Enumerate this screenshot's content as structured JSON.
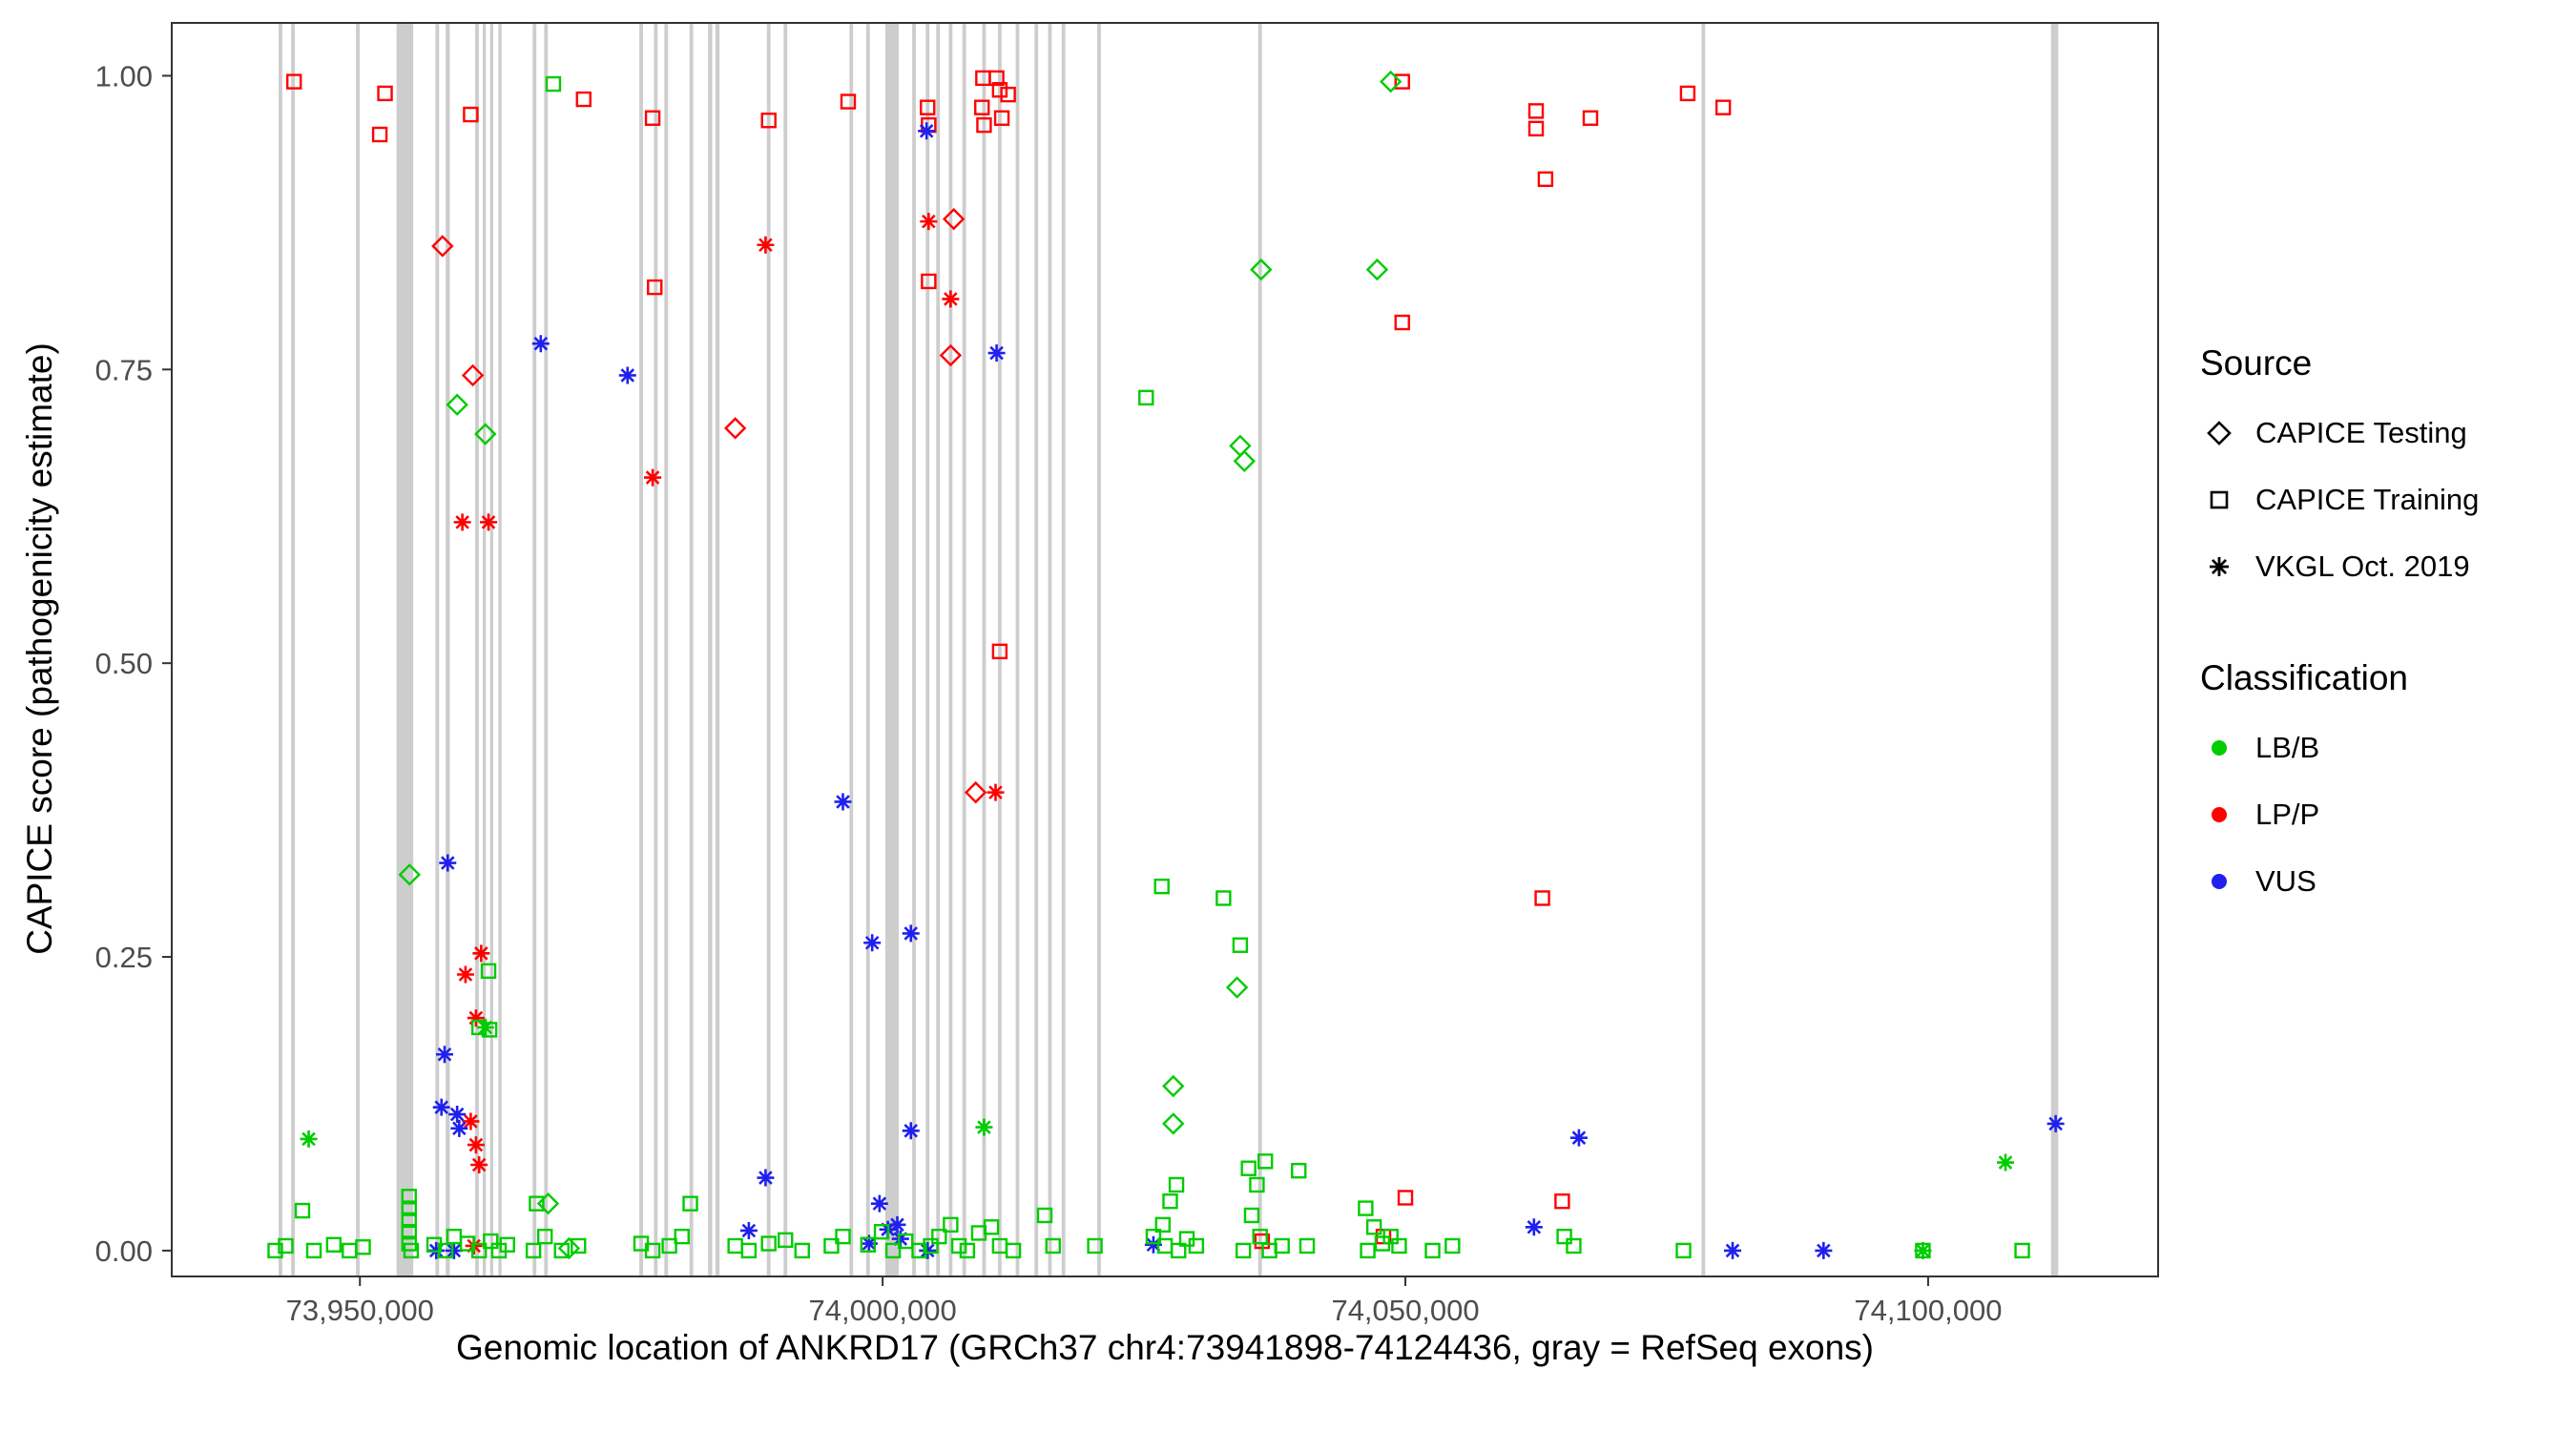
{
  "legend": {
    "source": {
      "title": "Source",
      "items": [
        {
          "label": "CAPICE Testing",
          "shape": "diamond"
        },
        {
          "label": "CAPICE Training",
          "shape": "square"
        },
        {
          "label": "VKGL Oct. 2019",
          "shape": "asterisk"
        }
      ]
    },
    "classification": {
      "title": "Classification",
      "items": [
        {
          "label": "LB/B",
          "color": "#00CC00"
        },
        {
          "label": "LP/P",
          "color": "#FF0000"
        },
        {
          "label": "VUS",
          "color": "#2020EE"
        }
      ]
    }
  },
  "chart_data": {
    "type": "scatter",
    "title": "",
    "xlabel": "Genomic location of ANKRD17 (GRCh37 chr4:73941898-74124436, gray = RefSeq exons)",
    "ylabel": "CAPICE score (pathogenicity estimate)",
    "x_domain": [
      73932000,
      74122000
    ],
    "y_domain": [
      -0.022,
      1.045
    ],
    "x_ticks": [
      {
        "value": 73950000,
        "label": "73,950,000"
      },
      {
        "value": 74000000,
        "label": "74,000,000"
      },
      {
        "value": 74050000,
        "label": "74,050,000"
      },
      {
        "value": 74100000,
        "label": "74,100,000"
      }
    ],
    "y_ticks": [
      {
        "value": 0.0,
        "label": "0.00"
      },
      {
        "value": 0.25,
        "label": "0.25"
      },
      {
        "value": 0.5,
        "label": "0.50"
      },
      {
        "value": 0.75,
        "label": "0.75"
      },
      {
        "value": 1.0,
        "label": "1.00"
      }
    ],
    "grid": false,
    "legend_position": "right",
    "colors": {
      "g": "#00CC00",
      "r": "#FF0000",
      "b": "#2020EE"
    },
    "class_names": {
      "g": "LB/B",
      "r": "LP/P",
      "b": "VUS"
    },
    "source_names": {
      "d": "CAPICE Testing",
      "s": "CAPICE Training",
      "a": "VKGL Oct. 2019"
    },
    "exon_color": "#C8C8C8",
    "exons": [
      [
        73942400,
        350
      ],
      [
        73943600,
        350
      ],
      [
        73949800,
        350
      ],
      [
        73954300,
        1600
      ],
      [
        73957400,
        350
      ],
      [
        73958400,
        400
      ],
      [
        73961200,
        350
      ],
      [
        73961900,
        300
      ],
      [
        73962600,
        300
      ],
      [
        73963400,
        300
      ],
      [
        73966700,
        350
      ],
      [
        73967800,
        350
      ],
      [
        73976900,
        350
      ],
      [
        73978300,
        350
      ],
      [
        73979300,
        350
      ],
      [
        73981700,
        350
      ],
      [
        73983500,
        400
      ],
      [
        73984200,
        400
      ],
      [
        73989100,
        350
      ],
      [
        73990700,
        350
      ],
      [
        73997000,
        350
      ],
      [
        73998600,
        350
      ],
      [
        74000900,
        1300
      ],
      [
        74003000,
        350
      ],
      [
        74004300,
        350
      ],
      [
        74005300,
        350
      ],
      [
        74006500,
        350
      ],
      [
        74007800,
        350
      ],
      [
        74009700,
        350
      ],
      [
        74011200,
        350
      ],
      [
        74012900,
        350
      ],
      [
        74014700,
        350
      ],
      [
        74016000,
        350
      ],
      [
        74017300,
        350
      ],
      [
        74020700,
        350
      ],
      [
        74036100,
        350
      ],
      [
        74078500,
        350
      ],
      [
        74112100,
        700
      ]
    ],
    "points": [
      [
        73943700,
        0.995,
        "r",
        "s"
      ],
      [
        73952400,
        0.985,
        "r",
        "s"
      ],
      [
        73951900,
        0.95,
        "r",
        "s"
      ],
      [
        73960600,
        0.967,
        "r",
        "s"
      ],
      [
        73971400,
        0.98,
        "r",
        "s"
      ],
      [
        73978000,
        0.964,
        "r",
        "s"
      ],
      [
        73978200,
        0.82,
        "r",
        "s"
      ],
      [
        73989100,
        0.962,
        "r",
        "s"
      ],
      [
        73996700,
        0.978,
        "r",
        "s"
      ],
      [
        74004300,
        0.973,
        "r",
        "s"
      ],
      [
        74004400,
        0.958,
        "r",
        "s"
      ],
      [
        74004400,
        0.825,
        "r",
        "s"
      ],
      [
        74009600,
        0.998,
        "r",
        "s"
      ],
      [
        74010900,
        0.998,
        "r",
        "s"
      ],
      [
        74011200,
        0.988,
        "r",
        "s"
      ],
      [
        74012000,
        0.984,
        "r",
        "s"
      ],
      [
        74009500,
        0.973,
        "r",
        "s"
      ],
      [
        74009700,
        0.958,
        "r",
        "s"
      ],
      [
        74011400,
        0.964,
        "r",
        "s"
      ],
      [
        74011200,
        0.51,
        "r",
        "s"
      ],
      [
        74049700,
        0.995,
        "r",
        "s"
      ],
      [
        74049700,
        0.79,
        "r",
        "s"
      ],
      [
        74062500,
        0.97,
        "r",
        "s"
      ],
      [
        74062500,
        0.955,
        "r",
        "s"
      ],
      [
        74067700,
        0.964,
        "r",
        "s"
      ],
      [
        74063400,
        0.912,
        "r",
        "s"
      ],
      [
        74077000,
        0.985,
        "r",
        "s"
      ],
      [
        74080400,
        0.973,
        "r",
        "s"
      ],
      [
        74063100,
        0.3,
        "r",
        "s"
      ],
      [
        74050000,
        0.045,
        "r",
        "s"
      ],
      [
        74047900,
        0.012,
        "r",
        "s"
      ],
      [
        74065000,
        0.042,
        "r",
        "s"
      ],
      [
        74036300,
        0.008,
        "r",
        "s"
      ],
      [
        73957900,
        0.855,
        "r",
        "d"
      ],
      [
        73960800,
        0.745,
        "r",
        "d"
      ],
      [
        73985900,
        0.7,
        "r",
        "d"
      ],
      [
        74006800,
        0.878,
        "r",
        "d"
      ],
      [
        74006500,
        0.762,
        "r",
        "d"
      ],
      [
        74008900,
        0.39,
        "r",
        "d"
      ],
      [
        73959800,
        0.62,
        "r",
        "a"
      ],
      [
        73962300,
        0.62,
        "r",
        "a"
      ],
      [
        73978000,
        0.658,
        "r",
        "a"
      ],
      [
        73988800,
        0.856,
        "r",
        "a"
      ],
      [
        74004400,
        0.876,
        "r",
        "a"
      ],
      [
        74006500,
        0.81,
        "r",
        "a"
      ],
      [
        74010800,
        0.39,
        "r",
        "a"
      ],
      [
        73961600,
        0.253,
        "r",
        "a"
      ],
      [
        73960100,
        0.235,
        "r",
        "a"
      ],
      [
        73961100,
        0.198,
        "r",
        "a"
      ],
      [
        73960600,
        0.11,
        "r",
        "a"
      ],
      [
        73961100,
        0.09,
        "r",
        "a"
      ],
      [
        73961400,
        0.073,
        "r",
        "a"
      ],
      [
        73960900,
        0.004,
        "r",
        "a"
      ],
      [
        73967300,
        0.772,
        "b",
        "a"
      ],
      [
        73975600,
        0.745,
        "b",
        "a"
      ],
      [
        74004200,
        0.953,
        "b",
        "a"
      ],
      [
        74010900,
        0.764,
        "b",
        "a"
      ],
      [
        73996200,
        0.382,
        "b",
        "a"
      ],
      [
        73999000,
        0.262,
        "b",
        "a"
      ],
      [
        74002700,
        0.27,
        "b",
        "a"
      ],
      [
        73958400,
        0.33,
        "b",
        "a"
      ],
      [
        73958100,
        0.167,
        "b",
        "a"
      ],
      [
        73957800,
        0.122,
        "b",
        "a"
      ],
      [
        73959300,
        0.116,
        "b",
        "a"
      ],
      [
        73959500,
        0.104,
        "b",
        "a"
      ],
      [
        73988800,
        0.062,
        "b",
        "a"
      ],
      [
        73987200,
        0.017,
        "b",
        "a"
      ],
      [
        74002700,
        0.102,
        "b",
        "a"
      ],
      [
        73999700,
        0.04,
        "b",
        "a"
      ],
      [
        73998700,
        0.006,
        "b",
        "a"
      ],
      [
        74000500,
        0.018,
        "b",
        "a"
      ],
      [
        74001400,
        0.022,
        "b",
        "a"
      ],
      [
        74001700,
        0.01,
        "b",
        "a"
      ],
      [
        74025900,
        0.005,
        "b",
        "a"
      ],
      [
        74062300,
        0.02,
        "b",
        "a"
      ],
      [
        74066600,
        0.096,
        "b",
        "a"
      ],
      [
        74081300,
        0.0,
        "b",
        "a"
      ],
      [
        74090000,
        0.0,
        "b",
        "a"
      ],
      [
        74112200,
        0.108,
        "b",
        "a"
      ],
      [
        73957300,
        0.0,
        "b",
        "a"
      ],
      [
        73959000,
        0.0,
        "b",
        "a"
      ],
      [
        74004300,
        0.0,
        "b",
        "a"
      ],
      [
        73954750,
        0.32,
        "g",
        "d"
      ],
      [
        73959300,
        0.72,
        "g",
        "d"
      ],
      [
        73962000,
        0.695,
        "g",
        "d"
      ],
      [
        74036200,
        0.835,
        "g",
        "d"
      ],
      [
        74047300,
        0.835,
        "g",
        "d"
      ],
      [
        74048600,
        0.995,
        "g",
        "d"
      ],
      [
        74034200,
        0.685,
        "g",
        "d"
      ],
      [
        74034600,
        0.672,
        "g",
        "d"
      ],
      [
        74027800,
        0.14,
        "g",
        "d"
      ],
      [
        74027800,
        0.108,
        "g",
        "d"
      ],
      [
        74033900,
        0.224,
        "g",
        "d"
      ],
      [
        73968000,
        0.04,
        "g",
        "d"
      ],
      [
        73970000,
        0.002,
        "g",
        "d"
      ],
      [
        73945100,
        0.095,
        "g",
        "a"
      ],
      [
        74009700,
        0.105,
        "g",
        "a"
      ],
      [
        74107400,
        0.075,
        "g",
        "a"
      ],
      [
        74099500,
        0.0,
        "g",
        "a"
      ],
      [
        73962000,
        0.19,
        "g",
        "a"
      ],
      [
        73968500,
        0.993,
        "g",
        "s"
      ],
      [
        74026700,
        0.31,
        "g",
        "s"
      ],
      [
        74032600,
        0.3,
        "g",
        "s"
      ],
      [
        74034200,
        0.26,
        "g",
        "s"
      ],
      [
        74025200,
        0.726,
        "g",
        "s"
      ],
      [
        73962300,
        0.238,
        "g",
        "s"
      ],
      [
        73961400,
        0.19,
        "g",
        "s"
      ],
      [
        73962400,
        0.188,
        "g",
        "s"
      ],
      [
        73941900,
        0.0,
        "g",
        "s"
      ],
      [
        73942900,
        0.004,
        "g",
        "s"
      ],
      [
        73945600,
        0.0,
        "g",
        "s"
      ],
      [
        73947500,
        0.005,
        "g",
        "s"
      ],
      [
        73949000,
        0.0,
        "g",
        "s"
      ],
      [
        73950300,
        0.003,
        "g",
        "s"
      ],
      [
        73944500,
        0.034,
        "g",
        "s"
      ],
      [
        73954700,
        0.046,
        "g",
        "s"
      ],
      [
        73954700,
        0.036,
        "g",
        "s"
      ],
      [
        73954700,
        0.026,
        "g",
        "s"
      ],
      [
        73954700,
        0.016,
        "g",
        "s"
      ],
      [
        73954700,
        0.006,
        "g",
        "s"
      ],
      [
        73954900,
        0.0,
        "g",
        "s"
      ],
      [
        73957100,
        0.005,
        "g",
        "s"
      ],
      [
        73958200,
        0.0,
        "g",
        "s"
      ],
      [
        73959000,
        0.012,
        "g",
        "s"
      ],
      [
        73960300,
        0.006,
        "g",
        "s"
      ],
      [
        73961400,
        0.0,
        "g",
        "s"
      ],
      [
        73962500,
        0.008,
        "g",
        "s"
      ],
      [
        73963300,
        0.0,
        "g",
        "s"
      ],
      [
        73964100,
        0.005,
        "g",
        "s"
      ],
      [
        73966900,
        0.04,
        "g",
        "s"
      ],
      [
        73967700,
        0.012,
        "g",
        "s"
      ],
      [
        73966600,
        0.0,
        "g",
        "s"
      ],
      [
        73969300,
        0.0,
        "g",
        "s"
      ],
      [
        73970900,
        0.004,
        "g",
        "s"
      ],
      [
        73976900,
        0.006,
        "g",
        "s"
      ],
      [
        73978000,
        0.0,
        "g",
        "s"
      ],
      [
        73979600,
        0.004,
        "g",
        "s"
      ],
      [
        73980800,
        0.012,
        "g",
        "s"
      ],
      [
        73981600,
        0.04,
        "g",
        "s"
      ],
      [
        73985900,
        0.004,
        "g",
        "s"
      ],
      [
        73987200,
        0.0,
        "g",
        "s"
      ],
      [
        73989100,
        0.006,
        "g",
        "s"
      ],
      [
        73990700,
        0.009,
        "g",
        "s"
      ],
      [
        73992300,
        0.0,
        "g",
        "s"
      ],
      [
        73995100,
        0.004,
        "g",
        "s"
      ],
      [
        73996200,
        0.012,
        "g",
        "s"
      ],
      [
        73998600,
        0.005,
        "g",
        "s"
      ],
      [
        73999900,
        0.016,
        "g",
        "s"
      ],
      [
        74001000,
        0.0,
        "g",
        "s"
      ],
      [
        74002200,
        0.008,
        "g",
        "s"
      ],
      [
        74003500,
        0.0,
        "g",
        "s"
      ],
      [
        74004600,
        0.004,
        "g",
        "s"
      ],
      [
        74005400,
        0.012,
        "g",
        "s"
      ],
      [
        74006500,
        0.022,
        "g",
        "s"
      ],
      [
        74007300,
        0.004,
        "g",
        "s"
      ],
      [
        74008100,
        0.0,
        "g",
        "s"
      ],
      [
        74009200,
        0.015,
        "g",
        "s"
      ],
      [
        74010400,
        0.02,
        "g",
        "s"
      ],
      [
        74011200,
        0.004,
        "g",
        "s"
      ],
      [
        74012500,
        0.0,
        "g",
        "s"
      ],
      [
        74015500,
        0.03,
        "g",
        "s"
      ],
      [
        74016300,
        0.004,
        "g",
        "s"
      ],
      [
        74020300,
        0.004,
        "g",
        "s"
      ],
      [
        74025900,
        0.012,
        "g",
        "s"
      ],
      [
        74026800,
        0.022,
        "g",
        "s"
      ],
      [
        74027500,
        0.042,
        "g",
        "s"
      ],
      [
        74028100,
        0.056,
        "g",
        "s"
      ],
      [
        74027000,
        0.004,
        "g",
        "s"
      ],
      [
        74028300,
        0.0,
        "g",
        "s"
      ],
      [
        74029100,
        0.01,
        "g",
        "s"
      ],
      [
        74030000,
        0.004,
        "g",
        "s"
      ],
      [
        74035000,
        0.07,
        "g",
        "s"
      ],
      [
        74035800,
        0.056,
        "g",
        "s"
      ],
      [
        74036600,
        0.076,
        "g",
        "s"
      ],
      [
        74035300,
        0.03,
        "g",
        "s"
      ],
      [
        74036100,
        0.012,
        "g",
        "s"
      ],
      [
        74037000,
        0.0,
        "g",
        "s"
      ],
      [
        74038200,
        0.004,
        "g",
        "s"
      ],
      [
        74034500,
        0.0,
        "g",
        "s"
      ],
      [
        74039800,
        0.068,
        "g",
        "s"
      ],
      [
        74040600,
        0.004,
        "g",
        "s"
      ],
      [
        74046200,
        0.036,
        "g",
        "s"
      ],
      [
        74047000,
        0.02,
        "g",
        "s"
      ],
      [
        74047800,
        0.006,
        "g",
        "s"
      ],
      [
        74046400,
        0.0,
        "g",
        "s"
      ],
      [
        74048600,
        0.012,
        "g",
        "s"
      ],
      [
        74049400,
        0.004,
        "g",
        "s"
      ],
      [
        74052600,
        0.0,
        "g",
        "s"
      ],
      [
        74054500,
        0.004,
        "g",
        "s"
      ],
      [
        74065200,
        0.012,
        "g",
        "s"
      ],
      [
        74066100,
        0.004,
        "g",
        "s"
      ],
      [
        74076600,
        0.0,
        "g",
        "s"
      ],
      [
        74099500,
        0.0,
        "g",
        "s"
      ],
      [
        74109000,
        0.0,
        "g",
        "s"
      ]
    ]
  }
}
